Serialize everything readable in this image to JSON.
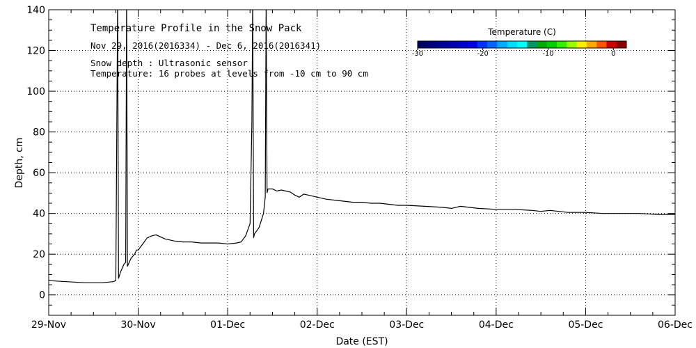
{
  "chart_data": {
    "type": "line",
    "title": "Temperature Profile in the Snow Pack",
    "subtitle": "Nov 29, 2016(2016334) - Dec  6, 2016(2016341)",
    "notes": [
      "Snow depth : Ultrasonic sensor",
      "Temperature: 16 probes at levels from -10 cm to 90 cm"
    ],
    "xlabel": "Date (EST)",
    "ylabel": "Depth, cm",
    "xlim": [
      0,
      7
    ],
    "ylim": [
      -10,
      140
    ],
    "x_ticks": [
      {
        "v": 0,
        "label": "29-Nov"
      },
      {
        "v": 1,
        "label": "30-Nov"
      },
      {
        "v": 2,
        "label": "01-Dec"
      },
      {
        "v": 3,
        "label": "02-Dec"
      },
      {
        "v": 4,
        "label": "03-Dec"
      },
      {
        "v": 5,
        "label": "04-Dec"
      },
      {
        "v": 6,
        "label": "05-Dec"
      },
      {
        "v": 7,
        "label": "06-Dec"
      }
    ],
    "y_ticks": [
      0,
      20,
      40,
      60,
      80,
      100,
      120,
      140
    ],
    "grid": true,
    "series": [
      {
        "color": "#000000",
        "x": [
          0,
          0.2,
          0.4,
          0.6,
          0.72,
          0.75,
          0.76,
          0.77,
          0.78,
          0.8,
          0.84,
          0.86,
          0.87,
          0.88,
          0.89,
          0.92,
          0.96,
          0.98,
          1.0,
          1.05,
          1.1,
          1.15,
          1.2,
          1.25,
          1.3,
          1.35,
          1.4,
          1.5,
          1.6,
          1.7,
          1.8,
          1.9,
          2.0,
          2.1,
          2.15,
          2.2,
          2.25,
          2.27,
          2.28,
          2.29,
          2.3,
          2.35,
          2.4,
          2.42,
          2.43,
          2.44,
          2.45,
          2.5,
          2.55,
          2.6,
          2.65,
          2.7,
          2.75,
          2.8,
          2.85,
          2.9,
          2.95,
          3.0,
          3.05,
          3.1,
          3.2,
          3.3,
          3.4,
          3.5,
          3.6,
          3.7,
          3.8,
          3.9,
          4.0,
          4.2,
          4.4,
          4.5,
          4.55,
          4.6,
          4.7,
          4.8,
          5.0,
          5.2,
          5.4,
          5.5,
          5.6,
          5.7,
          5.8,
          6.0,
          6.2,
          6.4,
          6.6,
          6.8,
          7.0
        ],
        "y": [
          7,
          6.5,
          6,
          6,
          6.5,
          7,
          75,
          145,
          8,
          11,
          15,
          16,
          145,
          14,
          15,
          18,
          20,
          22,
          22,
          25,
          28,
          29,
          29.5,
          28.5,
          27.5,
          27,
          26.5,
          26,
          26,
          25.5,
          25.5,
          25.5,
          25,
          25.5,
          26,
          29,
          35,
          85,
          145,
          28,
          30,
          33,
          40,
          48,
          145,
          50,
          52,
          52,
          51,
          51.5,
          51,
          50.5,
          49,
          48,
          49.5,
          49,
          48.5,
          48,
          47.5,
          47,
          46.5,
          46,
          45.5,
          45.5,
          45,
          45,
          44.5,
          44,
          44,
          43.5,
          43,
          42.5,
          43,
          43.5,
          43,
          42.5,
          42,
          42,
          41.5,
          41,
          41.5,
          41,
          40.5,
          40.5,
          40,
          40,
          40,
          39.5,
          39.5
        ]
      }
    ],
    "colorbar": {
      "title": "Temperature (C)",
      "min": -30,
      "max": 2,
      "ticks": [
        {
          "v": -30,
          "label": "-30"
        },
        {
          "v": -20,
          "label": "-20"
        },
        {
          "v": -10,
          "label": "-10"
        },
        {
          "v": 0,
          "label": "0"
        }
      ],
      "colors": [
        "#000066",
        "#00007f",
        "#000099",
        "#0000b2",
        "#0000cc",
        "#0000e5",
        "#0033ff",
        "#0066ff",
        "#00aaff",
        "#00ddff",
        "#00ffff",
        "#009966",
        "#00aa00",
        "#00cc00",
        "#33ee00",
        "#99ff00",
        "#ffee00",
        "#ffaa00",
        "#ff5500",
        "#cc0000",
        "#880000"
      ]
    }
  }
}
